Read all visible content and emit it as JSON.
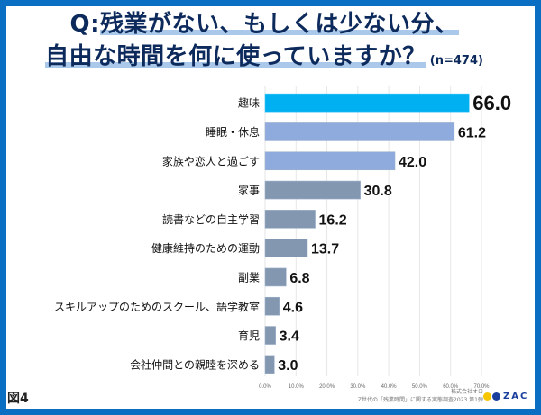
{
  "header": {
    "title_prefix": "Q:",
    "title_line1": "残業がない、もしくは少ない分、",
    "title_line2": "自由な時間を何に使っていますか？",
    "sample_size": "(n=474)"
  },
  "footer": {
    "figure_label": "図4",
    "source_company": "株式会社オロ",
    "source_survey": "Z世代の「残業時間」に関する実態調査2023 第1弾",
    "logo_text": "ZAC",
    "logo_colors": [
      "#f7c600",
      "#1a3f9c"
    ]
  },
  "colors": {
    "frame": "#0a6fc2",
    "highlight_bar": "#00b0f0",
    "top_bars": "#8faadc",
    "other_bars": "#8497b0",
    "grid": "#e6e6e6"
  },
  "chart_data": {
    "type": "bar",
    "orientation": "horizontal",
    "title": "Q:残業がない、もしくは少ない分、自由な時間を何に使っていますか？ (n=474)",
    "xlabel": "",
    "ylabel": "",
    "xlim": [
      0,
      70
    ],
    "grid": true,
    "x_ticks": [
      "0.0%",
      "10.0%",
      "20.0%",
      "30.0%",
      "40.0%",
      "50.0%",
      "60.0%",
      "70.0%"
    ],
    "x_tick_values": [
      0,
      10,
      20,
      30,
      40,
      50,
      60,
      70
    ],
    "categories": [
      "趣味",
      "睡眠・休息",
      "家族や恋人と過ごす",
      "家事",
      "読書などの自主学習",
      "健康維持のための運動",
      "副業",
      "スキルアップのためのスクール、語学教室",
      "育児",
      "会社仲間との親睦を深める"
    ],
    "values": [
      66.0,
      61.2,
      42.0,
      30.8,
      16.2,
      13.7,
      6.8,
      4.6,
      3.4,
      3.0
    ],
    "value_labels": [
      "66.0",
      "61.2",
      "42.0",
      "30.8",
      "16.2",
      "13.7",
      "6.8",
      "4.6",
      "3.4",
      "3.0"
    ],
    "bar_color_groups": [
      "highlight",
      "top",
      "top",
      "other",
      "other",
      "other",
      "other",
      "other",
      "other",
      "other"
    ]
  }
}
